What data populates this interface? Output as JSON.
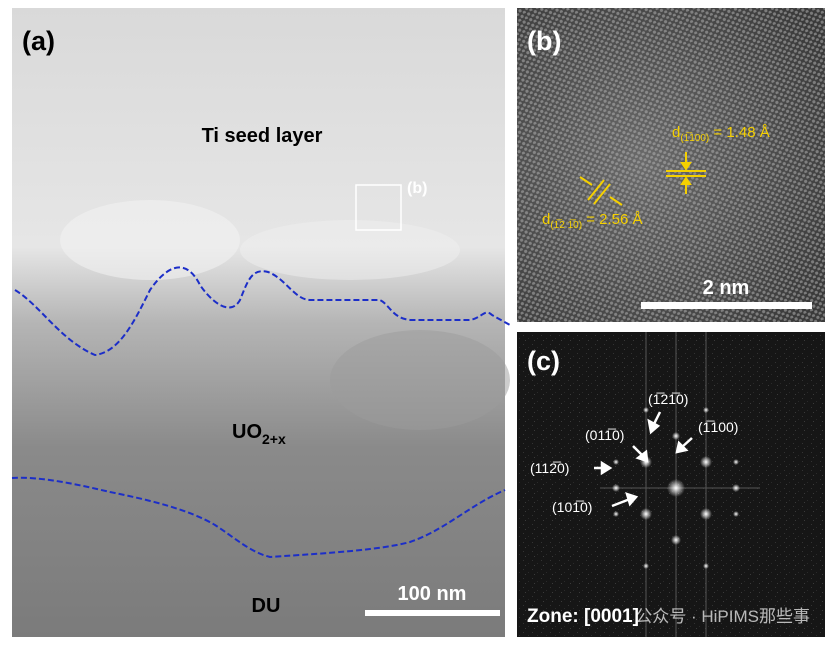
{
  "panel_a": {
    "label": "(a)",
    "layer_top": "Ti seed layer",
    "box_label": "(b)",
    "layer_mid": "UO",
    "layer_mid_sub": "2+x",
    "layer_bottom": "DU",
    "scale_bar": "100 nm"
  },
  "panel_b": {
    "label": "(b)",
    "d1": {
      "prefix": "d",
      "sub": "(1̅100)",
      "suffix": " = 1.48 Å"
    },
    "d2": {
      "prefix": "d",
      "sub": "(1̅2 1̅0)",
      "suffix": " = 2.56 Å"
    },
    "scale_bar": "2 nm"
  },
  "panel_c": {
    "label": "(c)",
    "spots": [
      "(1̅21̅0)",
      "(011̅0)",
      "(1̅100)",
      "(112̅0)",
      "(101̅0)"
    ],
    "zone": "Zone: [0001]"
  },
  "watermark": "公众号 · HiPIMS那些事"
}
